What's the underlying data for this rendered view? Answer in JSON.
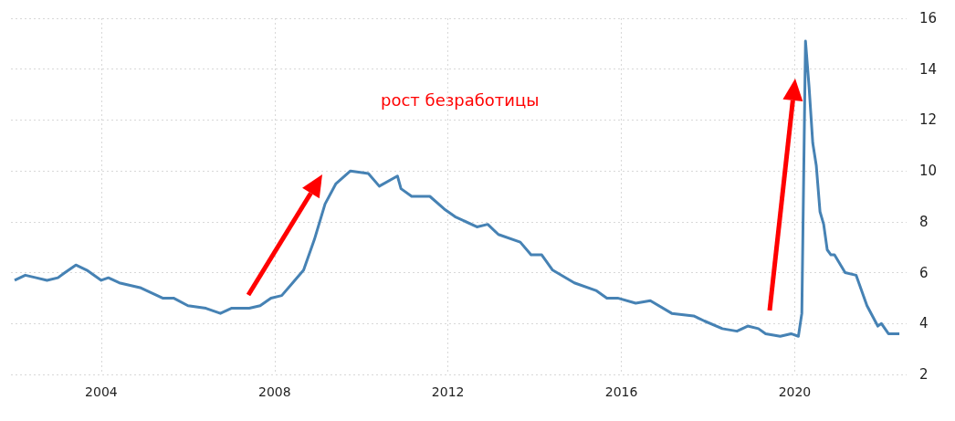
{
  "chart_data": {
    "type": "line",
    "annotations": [
      "рост безработицы"
    ],
    "x": [
      "2002-01",
      "2002-04",
      "2002-07",
      "2002-10",
      "2003-01",
      "2003-03",
      "2003-06",
      "2003-09",
      "2004-01",
      "2004-03",
      "2004-06",
      "2004-12",
      "2005-06",
      "2005-09",
      "2006-01",
      "2006-06",
      "2006-10",
      "2007-01",
      "2007-06",
      "2007-09",
      "2007-12",
      "2008-03",
      "2008-06",
      "2008-09",
      "2008-12",
      "2009-03",
      "2009-06",
      "2009-10",
      "2010-03",
      "2010-06",
      "2010-11",
      "2010-12",
      "2011-03",
      "2011-08",
      "2011-12",
      "2012-03",
      "2012-09",
      "2012-12",
      "2013-03",
      "2013-09",
      "2013-12",
      "2014-03",
      "2014-06",
      "2014-12",
      "2015-06",
      "2015-09",
      "2015-12",
      "2016-05",
      "2016-09",
      "2017-03",
      "2017-09",
      "2017-12",
      "2018-05",
      "2018-09",
      "2018-12",
      "2019-03",
      "2019-05",
      "2019-09",
      "2019-12",
      "2020-02",
      "2020-03",
      "2020-04",
      "2020-05",
      "2020-06",
      "2020-07",
      "2020-08",
      "2020-09",
      "2020-10",
      "2020-11",
      "2020-12",
      "2021-03",
      "2021-06",
      "2021-09",
      "2021-12",
      "2022-01",
      "2022-03",
      "2022-06"
    ],
    "series": [
      {
        "color": "#4682b4",
        "values": [
          5.7,
          5.9,
          5.8,
          5.7,
          5.8,
          6.0,
          6.3,
          6.1,
          5.7,
          5.8,
          5.6,
          5.4,
          5.0,
          5.0,
          4.7,
          4.6,
          4.4,
          4.6,
          4.6,
          4.7,
          5.0,
          5.1,
          5.6,
          6.1,
          7.3,
          8.7,
          9.5,
          10.0,
          9.9,
          9.4,
          9.8,
          9.3,
          9.0,
          9.0,
          8.5,
          8.2,
          7.8,
          7.9,
          7.5,
          7.2,
          6.7,
          6.7,
          6.1,
          5.6,
          5.3,
          5.0,
          5.0,
          4.8,
          4.9,
          4.4,
          4.3,
          4.1,
          3.8,
          3.7,
          3.9,
          3.8,
          3.6,
          3.5,
          3.6,
          3.5,
          4.4,
          15.1,
          13.3,
          11.1,
          10.2,
          8.4,
          7.9,
          6.9,
          6.7,
          6.7,
          6.0,
          5.9,
          4.7,
          3.9,
          4.0,
          3.6,
          3.6
        ]
      }
    ],
    "xlim": [
      "2001-12",
      "2022-08"
    ],
    "xticks": [
      "2004",
      "2008",
      "2012",
      "2016",
      "2020"
    ],
    "ylim": [
      2,
      16
    ],
    "yticks": [
      2,
      4,
      6,
      8,
      10,
      12,
      14,
      16
    ],
    "grid": true,
    "marker": "none",
    "line_style": "solid"
  }
}
